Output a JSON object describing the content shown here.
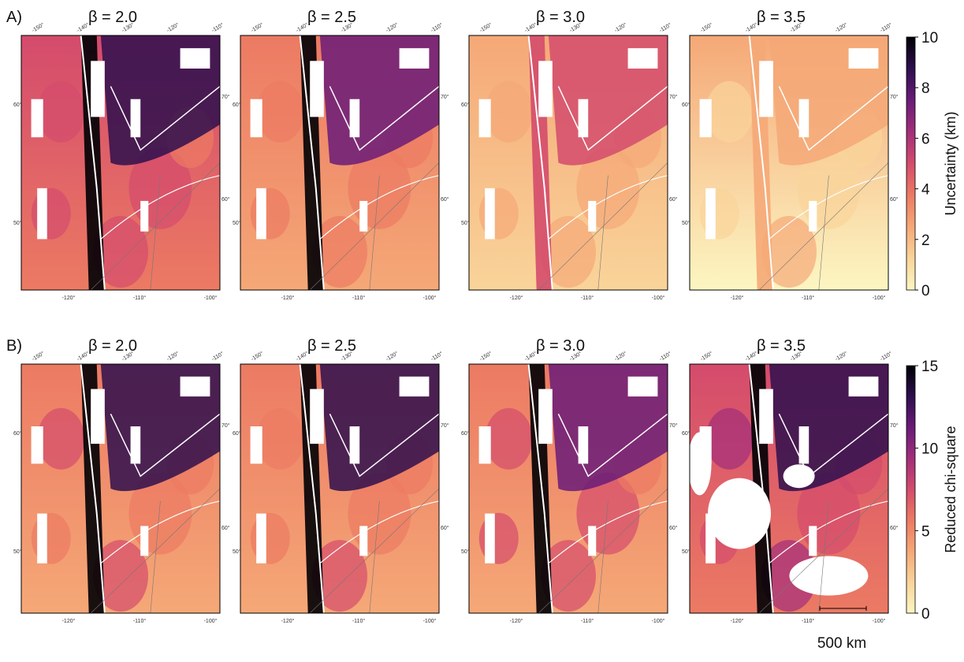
{
  "rows": [
    {
      "label": "A)",
      "panels": [
        "β = 2.0",
        "β = 2.5",
        "β = 3.0",
        "β = 3.5"
      ],
      "colorbar": {
        "label": "Uncertainty (km)",
        "lim": [
          0,
          10
        ],
        "ticks": [
          0,
          2,
          4,
          6,
          8,
          10
        ]
      }
    },
    {
      "label": "B)",
      "panels": [
        "β = 2.0",
        "β = 2.5",
        "β = 3.0",
        "β = 3.5"
      ],
      "colorbar": {
        "label": "Reduced chi-square",
        "lim": [
          0,
          15
        ],
        "ticks": [
          0,
          5,
          10,
          15
        ]
      }
    }
  ],
  "graticule": {
    "top": [
      "-150°",
      "-140°",
      "-130°",
      "-120°",
      "-110°"
    ],
    "bottom": [
      "-120°",
      "-110°",
      "-100°"
    ],
    "left": [
      "60°",
      "50°"
    ],
    "right": [
      "70°",
      "60°"
    ]
  },
  "colormap": [
    "#fcf6c2",
    "#f9d49a",
    "#f5a877",
    "#ec7a63",
    "#d44b6c",
    "#a22e7a",
    "#6a1b78",
    "#2e0f4e",
    "#000004"
  ],
  "scale_bar": "500 km"
}
